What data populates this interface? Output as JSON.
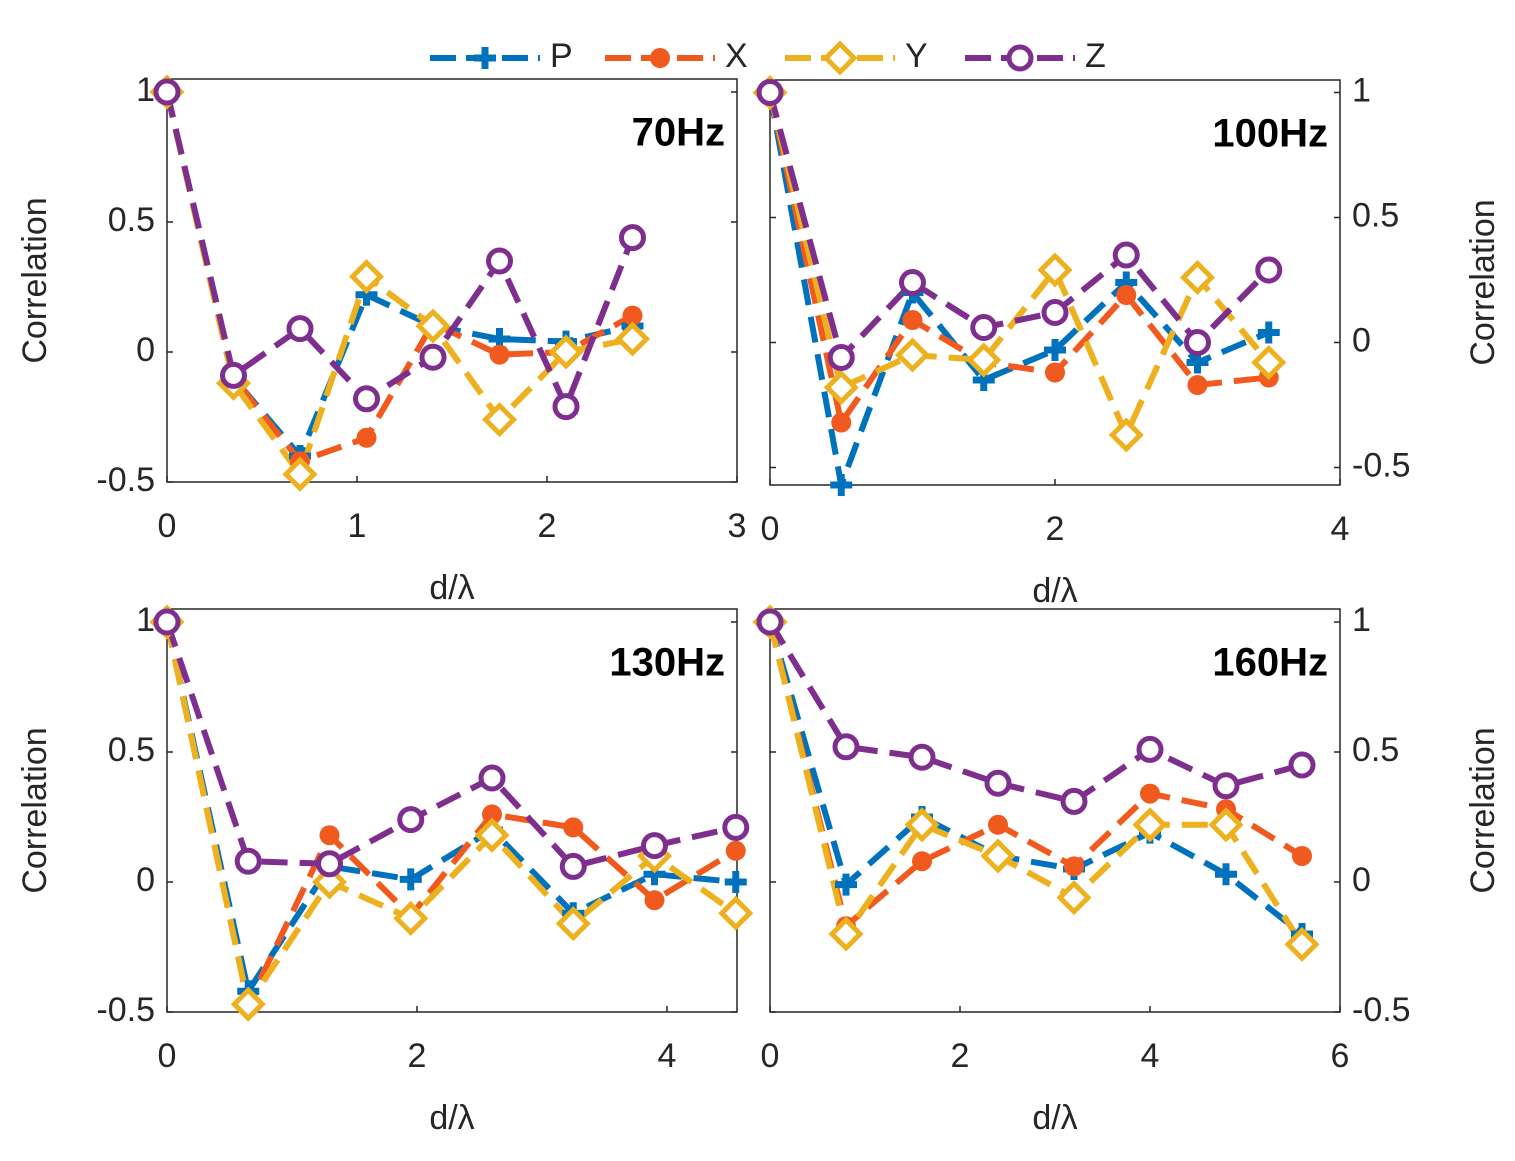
{
  "legend": [
    {
      "name": "P",
      "color": "#0072bd",
      "marker": "plus"
    },
    {
      "name": "X",
      "color": "#f05a1e",
      "marker": "dot"
    },
    {
      "name": "Y",
      "color": "#edb120",
      "marker": "diamond"
    },
    {
      "name": "Z",
      "color": "#7e2f8e",
      "marker": "circle"
    }
  ],
  "chart_data": [
    {
      "type": "line",
      "title": "70Hz",
      "xlabel": "d/λ",
      "ylabel": "Correlation",
      "yaxis": "left",
      "x": [
        0,
        0.35,
        0.7,
        1.05,
        1.4,
        1.75,
        2.1,
        2.45
      ],
      "series": [
        {
          "values": [
            1,
            -0.1,
            -0.4,
            0.22,
            0.1,
            0.05,
            0.04,
            0.1
          ]
        },
        {
          "values": [
            1,
            -0.1,
            -0.42,
            -0.33,
            0.11,
            -0.01,
            0.0,
            0.14
          ]
        },
        {
          "values": [
            1,
            -0.12,
            -0.47,
            0.29,
            0.1,
            -0.26,
            0.0,
            0.05
          ]
        },
        {
          "values": [
            1,
            -0.09,
            0.09,
            -0.18,
            -0.02,
            0.35,
            -0.21,
            0.44
          ]
        }
      ],
      "xlim": [
        0,
        3
      ],
      "xticks": [
        0,
        1,
        2,
        3
      ],
      "ylim": [
        -0.5,
        1.05
      ],
      "yticks": [
        -0.5,
        0,
        0.5,
        1
      ]
    },
    {
      "type": "line",
      "title": "100Hz",
      "xlabel": "d/λ",
      "ylabel": "Correlation",
      "yaxis": "right",
      "x": [
        0,
        0.5,
        1,
        1.5,
        2,
        2.5,
        3,
        3.5
      ],
      "series": [
        {
          "values": [
            1,
            -0.57,
            0.2,
            -0.15,
            -0.03,
            0.24,
            -0.08,
            0.04
          ]
        },
        {
          "values": [
            1,
            -0.32,
            0.09,
            -0.08,
            -0.12,
            0.19,
            -0.17,
            -0.14
          ]
        },
        {
          "values": [
            1,
            -0.18,
            -0.05,
            -0.07,
            0.29,
            -0.37,
            0.26,
            -0.08
          ]
        },
        {
          "values": [
            1,
            -0.06,
            0.24,
            0.06,
            0.12,
            0.35,
            0.0,
            0.29
          ]
        }
      ],
      "xlim": [
        0,
        4
      ],
      "xticks": [
        0,
        2,
        4
      ],
      "ylim": [
        -0.57,
        1.05
      ],
      "yticks": [
        -0.5,
        0,
        0.5,
        1
      ]
    },
    {
      "type": "line",
      "title": "130Hz",
      "xlabel": "d/λ",
      "ylabel": "Correlation",
      "yaxis": "left",
      "x": [
        0,
        0.65,
        1.3,
        1.95,
        2.6,
        3.25,
        3.9,
        4.55
      ],
      "series": [
        {
          "values": [
            1,
            -0.42,
            0.06,
            0.01,
            0.2,
            -0.12,
            0.03,
            0.0
          ]
        },
        {
          "values": [
            1,
            -0.47,
            0.18,
            -0.13,
            0.26,
            0.21,
            -0.07,
            0.12
          ]
        },
        {
          "values": [
            1,
            -0.47,
            0.0,
            -0.14,
            0.18,
            -0.16,
            0.1,
            -0.12
          ]
        },
        {
          "values": [
            1,
            0.08,
            0.07,
            0.24,
            0.4,
            0.06,
            0.14,
            0.21
          ]
        }
      ],
      "xlim": [
        0,
        4.56
      ],
      "xticks": [
        0,
        2,
        4
      ],
      "ylim": [
        -0.5,
        1.05
      ],
      "yticks": [
        -0.5,
        0,
        0.5,
        1
      ]
    },
    {
      "type": "line",
      "title": "160Hz",
      "xlabel": "d/λ",
      "ylabel": "Correlation",
      "yaxis": "right",
      "x": [
        0,
        0.8,
        1.6,
        2.4,
        3.2,
        4.0,
        4.8,
        5.6
      ],
      "series": [
        {
          "values": [
            1,
            -0.01,
            0.25,
            0.1,
            0.05,
            0.19,
            0.03,
            -0.2
          ]
        },
        {
          "values": [
            1,
            -0.17,
            0.08,
            0.22,
            0.06,
            0.34,
            0.28,
            0.1
          ]
        },
        {
          "values": [
            1,
            -0.2,
            0.22,
            0.1,
            -0.06,
            0.22,
            0.22,
            -0.24
          ]
        },
        {
          "values": [
            1,
            0.52,
            0.48,
            0.38,
            0.31,
            0.51,
            0.37,
            0.45
          ]
        }
      ],
      "xlim": [
        0,
        6
      ],
      "xticks": [
        0,
        2,
        4,
        6
      ],
      "ylim": [
        -0.5,
        1.05
      ],
      "yticks": [
        -0.5,
        0,
        0.5,
        1
      ]
    }
  ]
}
